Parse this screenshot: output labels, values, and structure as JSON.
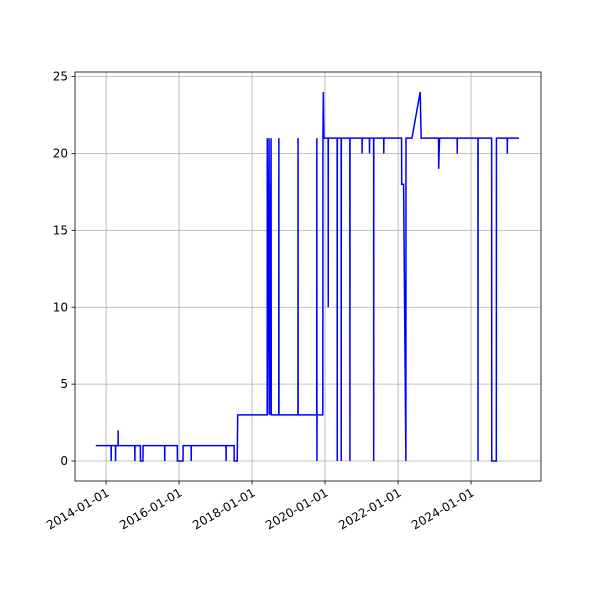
{
  "chart_data": {
    "type": "line",
    "x": [
      "2013-09-20",
      "2014-02-20",
      "2014-02-21",
      "2014-02-22",
      "2014-04-05",
      "2014-04-06",
      "2014-04-07",
      "2014-05-01",
      "2014-05-02",
      "2014-05-03",
      "2014-10-15",
      "2014-10-16",
      "2014-10-17",
      "2014-12-10",
      "2014-12-11",
      "2015-01-05",
      "2015-01-06",
      "2015-08-10",
      "2015-08-11",
      "2015-08-12",
      "2015-12-15",
      "2015-12-16",
      "2016-02-10",
      "2016-02-11",
      "2016-05-01",
      "2016-05-02",
      "2016-05-03",
      "2017-04-15",
      "2017-04-16",
      "2017-04-17",
      "2017-07-05",
      "2017-07-06",
      "2017-08-05",
      "2017-08-10",
      "2018-06-01",
      "2018-06-02",
      "2018-06-05",
      "2018-06-20",
      "2018-06-25",
      "2018-07-10",
      "2018-07-12",
      "2018-09-25",
      "2018-09-26",
      "2018-09-27",
      "2019-04-05",
      "2019-04-06",
      "2019-04-07",
      "2019-10-10",
      "2019-10-11",
      "2019-10-12",
      "2019-10-13",
      "2019-12-10",
      "2019-12-11",
      "2019-12-15",
      "2019-12-20",
      "2020-02-01",
      "2020-02-02",
      "2020-02-03",
      "2020-05-01",
      "2020-05-02",
      "2020-05-03",
      "2020-06-10",
      "2020-06-11",
      "2020-06-12",
      "2020-09-05",
      "2020-09-06",
      "2020-09-07",
      "2021-01-05",
      "2021-01-06",
      "2021-01-07",
      "2021-03-20",
      "2021-03-21",
      "2021-03-22",
      "2021-05-01",
      "2021-05-02",
      "2021-05-03",
      "2021-08-10",
      "2021-08-11",
      "2021-08-12",
      "2022-02-05",
      "2022-02-06",
      "2022-02-25",
      "2022-03-20",
      "2022-03-21",
      "2022-05-20",
      "2022-08-10",
      "2022-08-20",
      "2023-02-10",
      "2023-02-11",
      "2023-02-15",
      "2023-02-20",
      "2023-08-15",
      "2023-08-16",
      "2023-08-17",
      "2024-03-10",
      "2024-03-11",
      "2024-03-12",
      "2024-07-25",
      "2024-07-26",
      "2024-09-10",
      "2024-09-11",
      "2024-12-28",
      "2024-12-29",
      "2024-12-30",
      "2025-04-25"
    ],
    "series": [
      {
        "color": "#0000ff",
        "values": [
          1,
          1,
          0,
          1,
          1,
          0,
          1,
          1,
          2,
          1,
          1,
          0,
          1,
          1,
          0,
          0,
          1,
          1,
          0,
          1,
          1,
          0,
          0,
          1,
          1,
          0,
          1,
          1,
          0,
          1,
          1,
          0,
          0,
          3,
          3,
          21,
          3,
          21,
          3,
          21,
          3,
          3,
          21,
          3,
          3,
          21,
          3,
          3,
          21,
          0,
          3,
          3,
          21,
          24,
          21,
          21,
          10,
          21,
          21,
          0,
          21,
          21,
          0,
          21,
          21,
          0,
          21,
          21,
          20,
          21,
          21,
          20,
          21,
          21,
          0,
          21,
          21,
          20,
          21,
          21,
          18,
          18,
          0,
          21,
          21,
          24,
          21,
          21,
          19,
          20,
          21,
          21,
          20,
          21,
          21,
          0,
          21,
          21,
          0,
          0,
          21,
          21,
          20,
          21,
          21
        ]
      }
    ],
    "xlim": [
      "2013-02-24",
      "2025-12-01"
    ],
    "xticks": [
      "2014-01-01",
      "2016-01-01",
      "2018-01-01",
      "2020-01-01",
      "2022-01-01",
      "2024-01-01"
    ],
    "ylim": [
      -1.3,
      25.3
    ],
    "yticks": [
      0,
      5,
      10,
      15,
      20,
      25
    ],
    "grid": true
  }
}
